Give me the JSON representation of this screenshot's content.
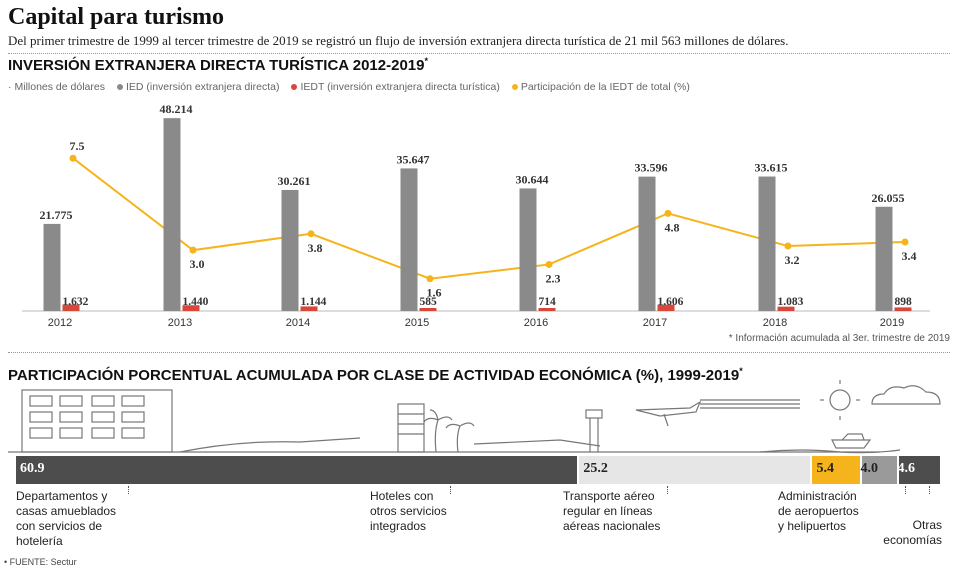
{
  "header": {
    "title": "Capital para turismo",
    "subtitle": "Del primer trimestre de 1999 al tercer trimestre de 2019 se registró un flujo de inversión extranjera directa turística de 21 mil 563 millones de dólares."
  },
  "section1": {
    "title": "INVERSIÓN EXTRANJERA DIRECTA TURÍSTICA 2012-2019",
    "title_mark": "*"
  },
  "legend": {
    "units": "Millones de dólares",
    "ied": "IED (inversión extranjera directa)",
    "iedt": "IEDT (inversión extranjera directa turística)",
    "share": "Participación de la IEDT de total (%)"
  },
  "note": "* Información acumulada al 3er. trimestre de 2019",
  "section2": {
    "title": "PARTICIPACIÓN PORCENTUAL ACUMULADA POR CLASE DE ACTIVIDAD ECONÓMICA (%), 1999-2019",
    "title_mark": "*"
  },
  "source": "• FUENTE: Sectur",
  "colors": {
    "ied": "#8a8a8a",
    "iedt": "#d9463a",
    "share": "#f5b41c",
    "dark": "#4d4d4d",
    "light": "#e6e6e6",
    "mid": "#9a9a9a"
  },
  "chart_data": [
    {
      "type": "bar",
      "title": "INVERSIÓN EXTRANJERA DIRECTA TURÍSTICA 2012-2019*",
      "categories": [
        "2012",
        "2013",
        "2014",
        "2015",
        "2016",
        "2017",
        "2018",
        "2019"
      ],
      "series": [
        {
          "name": "IED (inversión extranjera directa)",
          "values": [
            21775,
            48214,
            30261,
            35647,
            30644,
            33596,
            33615,
            26055
          ],
          "labels": [
            "21.775",
            "48.214",
            "30.261",
            "35.647",
            "30.644",
            "33.596",
            "33.615",
            "26.055"
          ]
        },
        {
          "name": "IEDT (inversión extranjera directa turística)",
          "values": [
            1632,
            1440,
            1144,
            585,
            714,
            1606,
            1083,
            898
          ],
          "labels": [
            "1.632",
            "1.440",
            "1.144",
            "585",
            "714",
            "1.606",
            "1.083",
            "898"
          ]
        },
        {
          "name": "Participación de la IEDT de total (%)",
          "type": "line",
          "values": [
            7.5,
            3.0,
            3.8,
            1.6,
            2.3,
            4.8,
            3.2,
            3.4
          ],
          "labels": [
            "7.5",
            "3.0",
            "3.8",
            "1.6",
            "2.3",
            "4.8",
            "3.2",
            "3.4"
          ]
        }
      ],
      "ylabel": "Millones de dólares",
      "grid": false,
      "legend_position": "top-left"
    },
    {
      "type": "bar",
      "title": "PARTICIPACIÓN PORCENTUAL ACUMULADA POR CLASE DE ACTIVIDAD ECONÓMICA (%), 1999-2019*",
      "stacked": true,
      "categories": [
        "Departamentos y casas amueblados con servicios de hotelería",
        "Hoteles con otros servicios integrados",
        "Transporte aéreo regular en líneas aéreas nacionales",
        "Administración de aeropuertos y helipuertos",
        "Otras economías"
      ],
      "values": [
        60.9,
        25.2,
        5.4,
        4.0,
        4.6
      ],
      "labels": [
        "60.9",
        "25.2",
        "5.4",
        "4.0",
        "4.6"
      ],
      "category_lines": [
        [
          "Departamentos y",
          "casas amueblados",
          "con servicios de",
          "hotelería"
        ],
        [
          "Hoteles con",
          "otros servicios",
          "integrados"
        ],
        [
          "Transporte aéreo",
          "regular en líneas",
          "aéreas nacionales"
        ],
        [
          "Administración",
          "de aeropuertos",
          "y helipuertos"
        ],
        [
          "Otras",
          "economías"
        ]
      ]
    }
  ]
}
